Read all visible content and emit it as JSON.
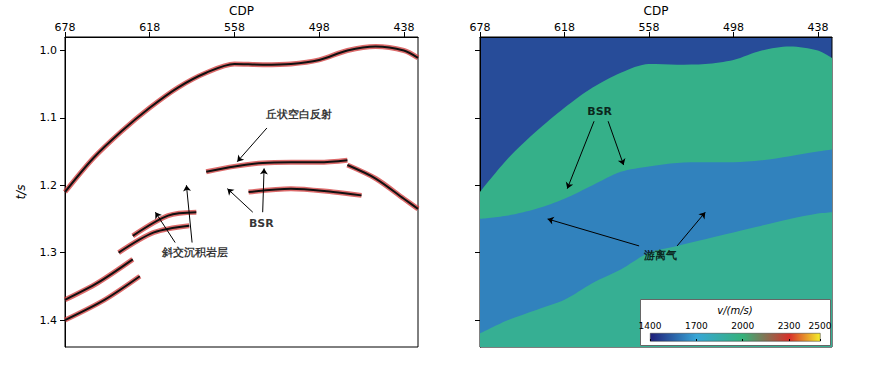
{
  "chart_data": [
    {
      "type": "line",
      "x_label": "CDP",
      "y_label": "t/s",
      "xlim": [
        678,
        428
      ],
      "ylim": [
        0.98,
        1.44
      ],
      "xticks": [
        678,
        618,
        558,
        498,
        438
      ],
      "yticks": [
        {
          "value": 1.0,
          "label": "1.0"
        },
        1.1,
        1.2,
        1.3,
        1.4
      ],
      "grid": false,
      "series": [
        {
          "x": [
            678,
            658,
            638,
            618,
            598,
            578,
            558,
            538,
            518,
            498,
            478,
            458,
            438,
            428
          ],
          "values": [
            1.21,
            1.16,
            1.12,
            1.085,
            1.055,
            1.033,
            1.02,
            1.021,
            1.02,
            1.014,
            1.0,
            0.994,
            1.0,
            1.011
          ],
          "color": "#111111"
        },
        {
          "x": [
            578,
            558,
            538,
            518,
            498,
            478
          ],
          "values": [
            1.18,
            1.172,
            1.167,
            1.166,
            1.166,
            1.163
          ],
          "color": "#111111"
        },
        {
          "x": [
            548,
            518,
            488,
            468
          ],
          "values": [
            1.21,
            1.205,
            1.21,
            1.215
          ],
          "color": "#111111"
        },
        {
          "x": [
            478,
            458,
            438,
            428
          ],
          "values": [
            1.17,
            1.19,
            1.22,
            1.235
          ],
          "color": "#111111"
        },
        {
          "x": [
            678,
            655,
            630
          ],
          "values": [
            1.37,
            1.345,
            1.31
          ],
          "color": "#111111"
        },
        {
          "x": [
            678,
            650,
            625
          ],
          "values": [
            1.4,
            1.37,
            1.335
          ],
          "color": "#111111"
        },
        {
          "x": [
            640,
            615,
            590
          ],
          "values": [
            1.3,
            1.27,
            1.26
          ],
          "color": "#111111"
        },
        {
          "x": [
            630,
            605,
            585
          ],
          "values": [
            1.275,
            1.245,
            1.24
          ],
          "color": "#111111"
        }
      ],
      "annotations": [
        {
          "text": "丘状空白反射",
          "x": 512,
          "y": 1.095,
          "arrows": [
            {
              "from": [
                535,
                1.115
              ],
              "to": [
                556,
                1.165
              ]
            }
          ]
        },
        {
          "text": "BSR",
          "x": 539,
          "y": 1.257,
          "arrows": [
            {
              "from": [
                545,
                1.24
              ],
              "to": [
                563,
                1.205
              ]
            },
            {
              "from": [
                538,
                1.24
              ],
              "to": [
                537,
                1.175
              ]
            }
          ]
        },
        {
          "text": "斜交沉积岩层",
          "x": 586,
          "y": 1.3,
          "arrows": [
            {
              "from": [
                600,
                1.285
              ],
              "to": [
                614,
                1.24
              ]
            },
            {
              "from": [
                588,
                1.285
              ],
              "to": [
                592,
                1.2
              ]
            }
          ]
        }
      ]
    },
    {
      "type": "area",
      "x_label": "CDP",
      "xlim": [
        678,
        428
      ],
      "ylim": [
        0.98,
        1.44
      ],
      "xticks": [
        678,
        618,
        558,
        498,
        438
      ],
      "yticks": [
        {
          "value": 1.0,
          "label": "1.0"
        },
        1.1,
        1.2,
        1.3,
        1.4
      ],
      "tick_labels": "x",
      "background_velocity": 1500,
      "layers": [
        {
          "x": [
            678,
            658,
            638,
            618,
            598,
            578,
            558,
            538,
            518,
            498,
            478,
            458,
            438,
            428
          ],
          "values": [
            1.21,
            1.16,
            1.12,
            1.085,
            1.055,
            1.033,
            1.02,
            1.021,
            1.02,
            1.014,
            1.0,
            0.994,
            1.0,
            1.011
          ],
          "velocity": 1950
        },
        {
          "x": [
            678,
            658,
            638,
            618,
            598,
            578,
            558,
            538,
            518,
            498,
            478,
            458,
            438,
            428
          ],
          "values": [
            1.25,
            1.245,
            1.235,
            1.22,
            1.2,
            1.18,
            1.172,
            1.167,
            1.166,
            1.166,
            1.163,
            1.157,
            1.15,
            1.147
          ],
          "velocity": 1620
        },
        {
          "x": [
            678,
            658,
            638,
            618,
            598,
            578,
            558,
            538,
            518,
            498,
            478,
            458,
            438,
            428
          ],
          "values": [
            1.42,
            1.4,
            1.385,
            1.37,
            1.345,
            1.325,
            1.3,
            1.29,
            1.28,
            1.27,
            1.26,
            1.25,
            1.242,
            1.24
          ],
          "velocity": 1920
        }
      ],
      "colorbar": {
        "label": "v/(m/s)",
        "range": [
          1400,
          2500
        ],
        "ticks": [
          1400,
          1700,
          2000,
          2300,
          2500
        ],
        "colors": [
          "#1f1f7a",
          "#37a6d6",
          "#35b27a",
          "#d8302a",
          "#f4ef2a"
        ]
      },
      "annotations": [
        {
          "text": "BSR",
          "x": 593,
          "y": 1.09,
          "arrows": [
            {
              "from": [
                597,
                1.105
              ],
              "to": [
                616,
                1.205
              ]
            },
            {
              "from": [
                587,
                1.105
              ],
              "to": [
                576,
                1.17
              ]
            }
          ]
        },
        {
          "text": "游离气",
          "x": 550,
          "y": 1.304,
          "arrows": [
            {
              "from": [
                565,
                1.29
              ],
              "to": [
                630,
                1.25
              ]
            },
            {
              "from": [
                538,
                1.29
              ],
              "to": [
                518,
                1.24
              ]
            }
          ]
        }
      ]
    }
  ]
}
